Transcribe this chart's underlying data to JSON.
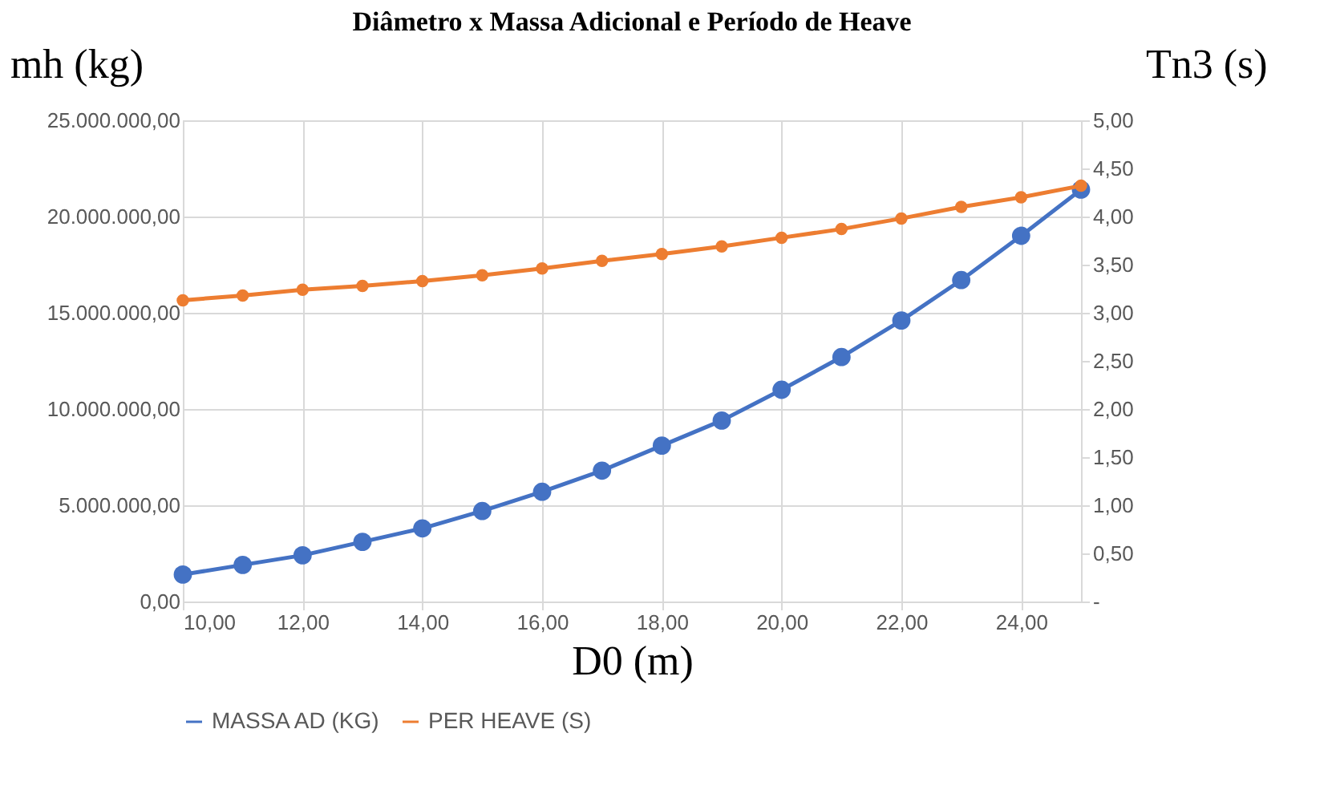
{
  "chart_data": {
    "type": "line",
    "title": "Diâmetro x Massa Adicional e Período de Heave",
    "xlabel": "D0 (m)",
    "ylabel": "mh (kg)",
    "y2label": "Tn3 (s)",
    "x": [
      10,
      11,
      12,
      13,
      14,
      15,
      16,
      17,
      18,
      19,
      20,
      21,
      22,
      23,
      24,
      25
    ],
    "series": [
      {
        "name": "MASSA AD (KG)",
        "color": "#4472c4",
        "values": [
          1400000,
          1900000,
          2400000,
          3100000,
          3800000,
          4700000,
          5700000,
          6800000,
          8100000,
          9400000,
          11000000,
          12700000,
          14600000,
          16700000,
          19000000,
          21400000
        ]
      },
      {
        "name": "PER HEAVE (S)",
        "color": "#ed7d31",
        "axis": "y2",
        "values": [
          3.13,
          3.18,
          3.24,
          3.28,
          3.33,
          3.39,
          3.46,
          3.54,
          3.61,
          3.69,
          3.78,
          3.87,
          3.98,
          4.1,
          4.2,
          4.32
        ]
      }
    ],
    "xlim": [
      10,
      25
    ],
    "xticks": [
      {
        "value": 10,
        "label": "10,00"
      },
      {
        "value": 12,
        "label": "12,00"
      },
      {
        "value": 14,
        "label": "14,00"
      },
      {
        "value": 16,
        "label": "16,00"
      },
      {
        "value": 18,
        "label": "18,00"
      },
      {
        "value": 20,
        "label": "20,00"
      },
      {
        "value": 22,
        "label": "22,00"
      },
      {
        "value": 24,
        "label": "24,00"
      }
    ],
    "ylim": [
      0,
      25000000
    ],
    "yticks": [
      {
        "value": 0,
        "label": "0,00"
      },
      {
        "value": 5000000,
        "label": "5.000.000,00"
      },
      {
        "value": 10000000,
        "label": "10.000.000,00"
      },
      {
        "value": 15000000,
        "label": "15.000.000,00"
      },
      {
        "value": 20000000,
        "label": "20.000.000,00"
      },
      {
        "value": 25000000,
        "label": "25.000.000,00"
      }
    ],
    "y2lim": [
      0,
      5
    ],
    "y2ticks": [
      {
        "value": 0,
        "label": "-"
      },
      {
        "value": 0.5,
        "label": "0,50"
      },
      {
        "value": 1,
        "label": "1,00"
      },
      {
        "value": 1.5,
        "label": "1,50"
      },
      {
        "value": 2,
        "label": "2,00"
      },
      {
        "value": 2.5,
        "label": "2,50"
      },
      {
        "value": 3,
        "label": "3,00"
      },
      {
        "value": 3.5,
        "label": "3,50"
      },
      {
        "value": 4,
        "label": "4,00"
      },
      {
        "value": 4.5,
        "label": "4,50"
      },
      {
        "value": 5,
        "label": "5,00"
      }
    ],
    "grid": true,
    "legend": "bottom",
    "marker": "circle",
    "line_style": "solid"
  }
}
